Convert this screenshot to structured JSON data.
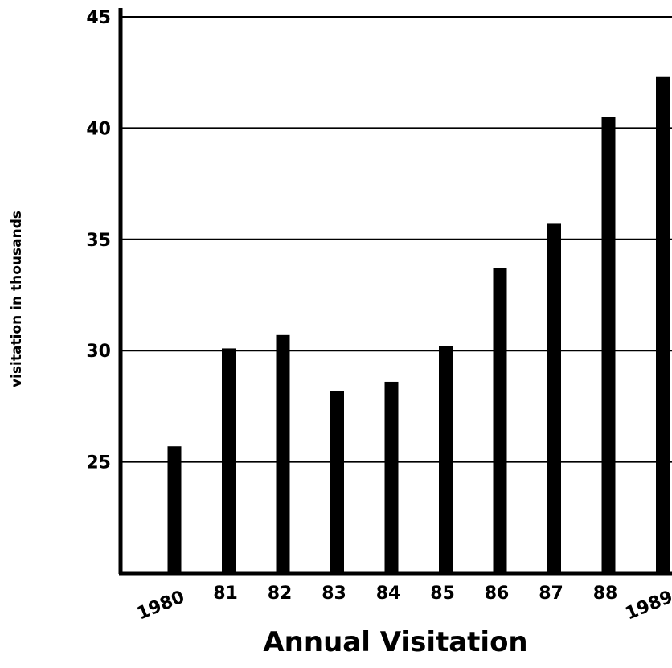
{
  "chart_data": {
    "type": "bar",
    "title": "Annual Visitation",
    "xlabel": "",
    "ylabel": "visitation in thousands",
    "categories": [
      "1980",
      "81",
      "82",
      "83",
      "84",
      "85",
      "86",
      "87",
      "88",
      "1989"
    ],
    "values": [
      25.7,
      30.1,
      30.7,
      28.2,
      28.6,
      30.2,
      33.7,
      35.7,
      40.5,
      42.3
    ],
    "ylim": [
      20,
      45
    ],
    "yticks": [
      "25",
      "30",
      "35",
      "40",
      "45"
    ],
    "grid": true,
    "bar_color": "#000000"
  }
}
